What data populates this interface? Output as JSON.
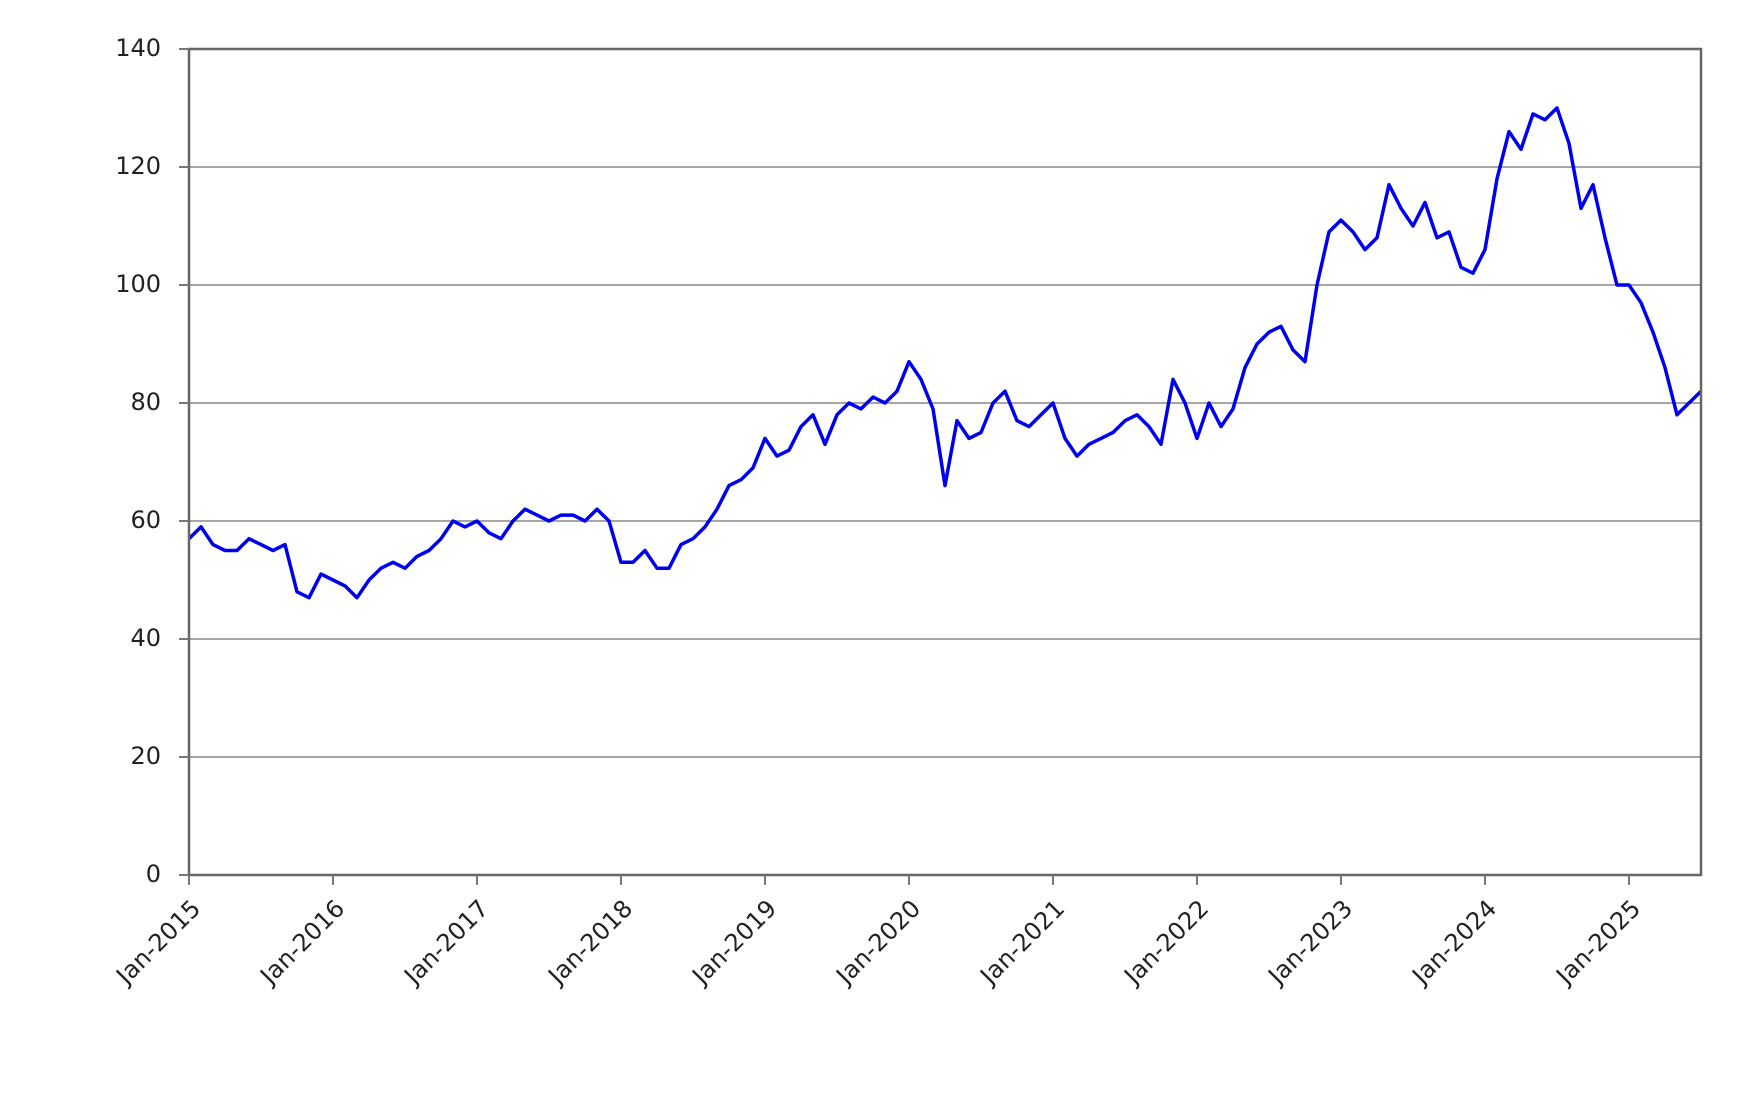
{
  "chart_data": {
    "type": "line",
    "x": [
      "2015-01",
      "2015-02",
      "2015-03",
      "2015-04",
      "2015-05",
      "2015-06",
      "2015-07",
      "2015-08",
      "2015-09",
      "2015-10",
      "2015-11",
      "2015-12",
      "2016-01",
      "2016-02",
      "2016-03",
      "2016-04",
      "2016-05",
      "2016-06",
      "2016-07",
      "2016-08",
      "2016-09",
      "2016-10",
      "2016-11",
      "2016-12",
      "2017-01",
      "2017-02",
      "2017-03",
      "2017-04",
      "2017-05",
      "2017-06",
      "2017-07",
      "2017-08",
      "2017-09",
      "2017-10",
      "2017-11",
      "2017-12",
      "2018-01",
      "2018-02",
      "2018-03",
      "2018-04",
      "2018-05",
      "2018-06",
      "2018-07",
      "2018-08",
      "2018-09",
      "2018-10",
      "2018-11",
      "2018-12",
      "2019-01",
      "2019-02",
      "2019-03",
      "2019-04",
      "2019-05",
      "2019-06",
      "2019-07",
      "2019-08",
      "2019-09",
      "2019-10",
      "2019-11",
      "2019-12",
      "2020-01",
      "2020-02",
      "2020-03",
      "2020-04",
      "2020-05",
      "2020-06",
      "2020-07",
      "2020-08",
      "2020-09",
      "2020-10",
      "2020-11",
      "2020-12",
      "2021-01",
      "2021-02",
      "2021-03",
      "2021-04",
      "2021-05",
      "2021-06",
      "2021-07",
      "2021-08",
      "2021-09",
      "2021-10",
      "2021-11",
      "2021-12",
      "2022-01",
      "2022-02",
      "2022-03",
      "2022-04",
      "2022-05",
      "2022-06",
      "2022-07",
      "2022-08",
      "2022-09",
      "2022-10",
      "2022-11",
      "2022-12",
      "2023-01",
      "2023-02",
      "2023-03",
      "2023-04",
      "2023-05",
      "2023-06",
      "2023-07",
      "2023-08",
      "2023-09",
      "2023-10",
      "2023-11",
      "2023-12",
      "2024-01",
      "2024-02",
      "2024-03",
      "2024-04",
      "2024-05",
      "2024-06",
      "2024-07",
      "2024-08",
      "2024-09",
      "2024-10",
      "2024-11",
      "2024-12",
      "2025-01",
      "2025-02",
      "2025-03",
      "2025-04",
      "2025-05",
      "2025-06",
      "2025-07"
    ],
    "series": [
      {
        "color": "#0000ee",
        "values": [
          57,
          59,
          56,
          55,
          55,
          57,
          56,
          55,
          56,
          48,
          47,
          51,
          50,
          49,
          47,
          50,
          52,
          53,
          52,
          54,
          55,
          57,
          60,
          59,
          60,
          58,
          57,
          60,
          62,
          61,
          60,
          61,
          61,
          60,
          62,
          60,
          53,
          53,
          55,
          52,
          52,
          56,
          57,
          59,
          62,
          66,
          67,
          69,
          74,
          71,
          72,
          76,
          78,
          73,
          78,
          80,
          79,
          81,
          80,
          82,
          87,
          84,
          79,
          66,
          77,
          74,
          75,
          80,
          82,
          77,
          76,
          78,
          80,
          74,
          71,
          73,
          74,
          75,
          77,
          78,
          76,
          73,
          84,
          80,
          74,
          80,
          76,
          79,
          86,
          90,
          92,
          93,
          89,
          87,
          100,
          109,
          111,
          109,
          106,
          108,
          117,
          113,
          110,
          114,
          108,
          109,
          103,
          102,
          106,
          118,
          126,
          123,
          129,
          128,
          130,
          124,
          113,
          117,
          108,
          100,
          100,
          97,
          92,
          86,
          78,
          80,
          82
        ]
      }
    ],
    "xlim": [
      "2015-01",
      "2025-07"
    ],
    "xticks": [
      {
        "value": "2015-01",
        "label": "Jan-2015"
      },
      {
        "value": "2016-01",
        "label": "Jan-2016"
      },
      {
        "value": "2017-01",
        "label": "Jan-2017"
      },
      {
        "value": "2018-01",
        "label": "Jan-2018"
      },
      {
        "value": "2019-01",
        "label": "Jan-2019"
      },
      {
        "value": "2020-01",
        "label": "Jan-2020"
      },
      {
        "value": "2021-01",
        "label": "Jan-2021"
      },
      {
        "value": "2022-01",
        "label": "Jan-2022"
      },
      {
        "value": "2023-01",
        "label": "Jan-2023"
      },
      {
        "value": "2024-01",
        "label": "Jan-2024"
      },
      {
        "value": "2025-01",
        "label": "Jan-2025"
      }
    ],
    "ylim": [
      0,
      140
    ],
    "yticks": [
      0,
      20,
      40,
      60,
      80,
      100,
      120,
      140
    ],
    "grid": true
  }
}
